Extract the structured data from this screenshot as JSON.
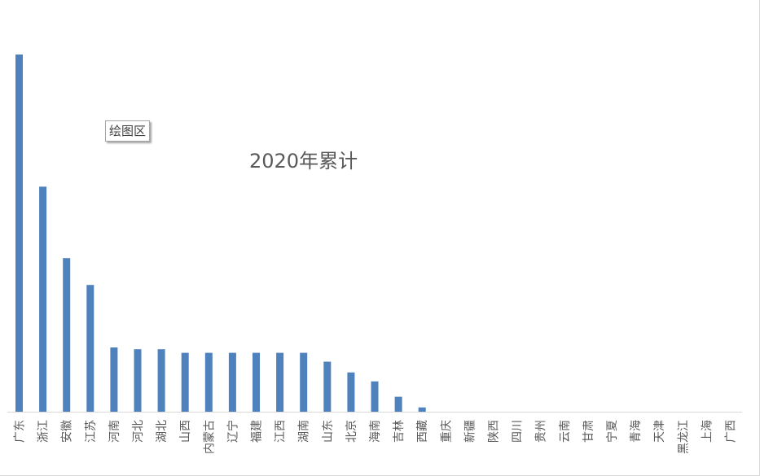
{
  "tooltip": {
    "text": "绘图区"
  },
  "chart_data": {
    "type": "bar",
    "title": "2020年累计",
    "xlabel": "",
    "ylabel": "",
    "grid": false,
    "legend": "none",
    "color": "#4f81bd",
    "categories": [
      "广东",
      "浙江",
      "安徽",
      "江苏",
      "河南",
      "河北",
      "湖北",
      "山西",
      "内蒙古",
      "辽宁",
      "福建",
      "江西",
      "湖南",
      "山东",
      "北京",
      "海南",
      "吉林",
      "西藏",
      "重庆",
      "新疆",
      "陕西",
      "四川",
      "贵州",
      "云南",
      "甘肃",
      "宁夏",
      "青海",
      "天津",
      "黑龙江",
      "上海",
      "广西"
    ],
    "values": [
      100,
      63,
      43,
      35.5,
      18,
      17.5,
      17.5,
      16.5,
      16.5,
      16.5,
      16.5,
      16.5,
      16.5,
      14,
      11,
      8.5,
      4.2,
      1.2,
      0,
      0,
      0,
      0,
      0,
      0,
      0,
      0,
      0,
      0,
      0,
      0,
      0
    ],
    "ylim": [
      0,
      100
    ]
  }
}
